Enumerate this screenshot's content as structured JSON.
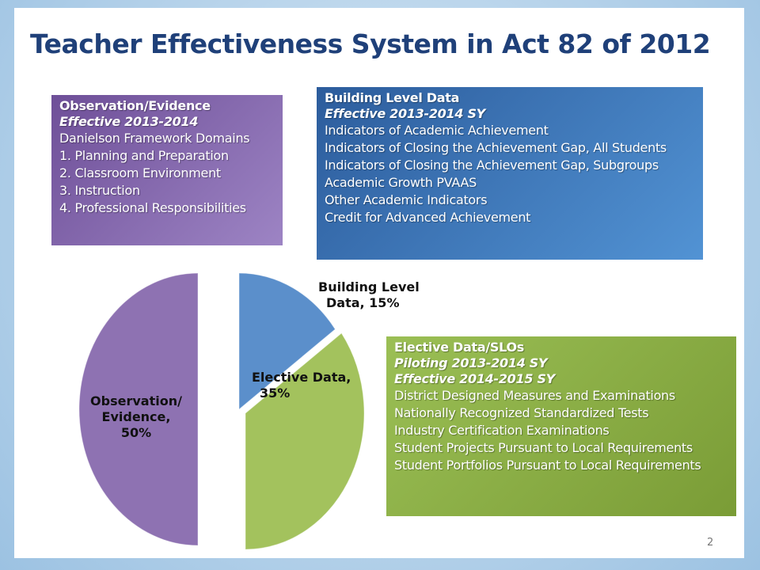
{
  "title": "Teacher Effectiveness System in Act 82 of 2012",
  "boxes": [
    {
      "heading": "Observation/Evidence",
      "effective": [
        "Effective 2013-2014"
      ],
      "items": [
        "Danielson Framework Domains",
        "1. Planning and Preparation",
        "2. Classroom Environment",
        "3. Instruction",
        "4. Professional Responsibilities"
      ]
    },
    {
      "heading": "Building Level Data",
      "effective": [
        "Effective 2013-2014 SY"
      ],
      "items": [
        "Indicators of Academic Achievement",
        "Indicators of Closing the Achievement Gap, All Students",
        "Indicators of Closing the Achievement Gap, Subgroups",
        "Academic Growth PVAAS",
        "Other Academic Indicators",
        "Credit for Advanced Achievement"
      ]
    },
    {
      "heading": "Elective Data/SLOs",
      "effective": [
        "Piloting 2013-2014 SY",
        "Effective 2014-2015 SY"
      ],
      "items": [
        "District Designed Measures and Examinations",
        "Nationally Recognized Standardized Tests",
        "Industry Certification Examinations",
        "Student Projects Pursuant to Local Requirements",
        "Student Portfolios Pursuant to Local Requirements"
      ]
    }
  ],
  "page_number": "2",
  "chart_data": {
    "type": "pie",
    "values": [
      15,
      35,
      50
    ],
    "value_labels": [
      [
        "Building Level",
        "Data, 15%"
      ],
      [
        "Elective Data,",
        "35%"
      ],
      [
        "Observation/",
        "Evidence,",
        "50%"
      ]
    ],
    "colors": [
      "#5b8fcb",
      "#a3c25d",
      "#8e72b2"
    ]
  }
}
